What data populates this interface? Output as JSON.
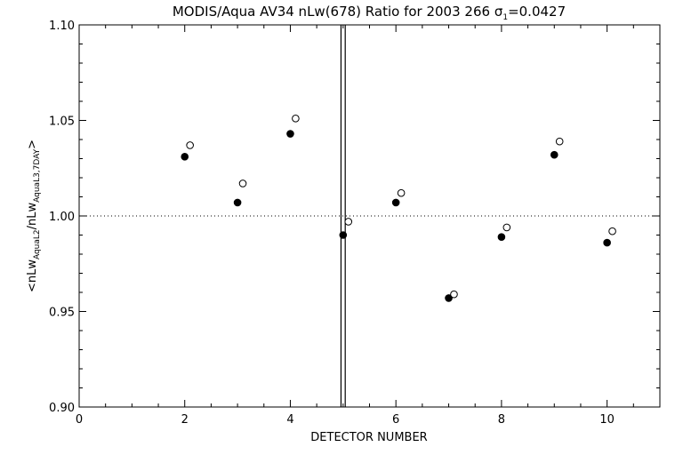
{
  "chart_data": {
    "type": "scatter",
    "title_prefix": "MODIS/Aqua AV34 nLw(678) Ratio for 2003 266 ",
    "title_sigma": "σ",
    "title_sigma_sub": "1",
    "title_suffix": "=0.0427",
    "xlabel": "DETECTOR NUMBER",
    "ylabel_open": "<nLw",
    "ylabel_sub1": "AquaL2",
    "ylabel_mid": "/nLw",
    "ylabel_sub2": "AquaL3,7DAY",
    "ylabel_close": ">",
    "xlim": [
      0,
      11
    ],
    "ylim": [
      0.9,
      1.1
    ],
    "x_ticks": [
      0,
      2,
      4,
      6,
      8,
      10
    ],
    "x_tick_labels": [
      "0",
      "2",
      "4",
      "6",
      "8",
      "10"
    ],
    "y_ticks": [
      0.9,
      0.95,
      1.0,
      1.05,
      1.1
    ],
    "y_tick_labels": [
      "0.90",
      "0.95",
      "1.00",
      "1.05",
      "1.10"
    ],
    "reference_line_y": 1.0,
    "vertical_lines_x": [
      4.96,
      5.04
    ],
    "series": [
      {
        "marker": "filled-circle",
        "points": [
          {
            "x": 2,
            "y": 1.031
          },
          {
            "x": 3,
            "y": 1.007
          },
          {
            "x": 4,
            "y": 1.043
          },
          {
            "x": 5,
            "y": 0.99
          },
          {
            "x": 6,
            "y": 1.007
          },
          {
            "x": 7,
            "y": 0.957
          },
          {
            "x": 8,
            "y": 0.989
          },
          {
            "x": 9,
            "y": 1.032
          },
          {
            "x": 10,
            "y": 0.986
          }
        ]
      },
      {
        "marker": "open-circle",
        "points": [
          {
            "x": 2.1,
            "y": 1.037
          },
          {
            "x": 3.1,
            "y": 1.017
          },
          {
            "x": 4.1,
            "y": 1.051
          },
          {
            "x": 5.1,
            "y": 0.997
          },
          {
            "x": 6.1,
            "y": 1.012
          },
          {
            "x": 7.1,
            "y": 0.959
          },
          {
            "x": 8.1,
            "y": 0.994
          },
          {
            "x": 9.1,
            "y": 1.039
          },
          {
            "x": 10.1,
            "y": 0.992
          }
        ]
      }
    ],
    "grid": false,
    "legend": "none",
    "colors": {
      "axis": "#000000",
      "marker": "#000000",
      "background": "#ffffff"
    }
  }
}
